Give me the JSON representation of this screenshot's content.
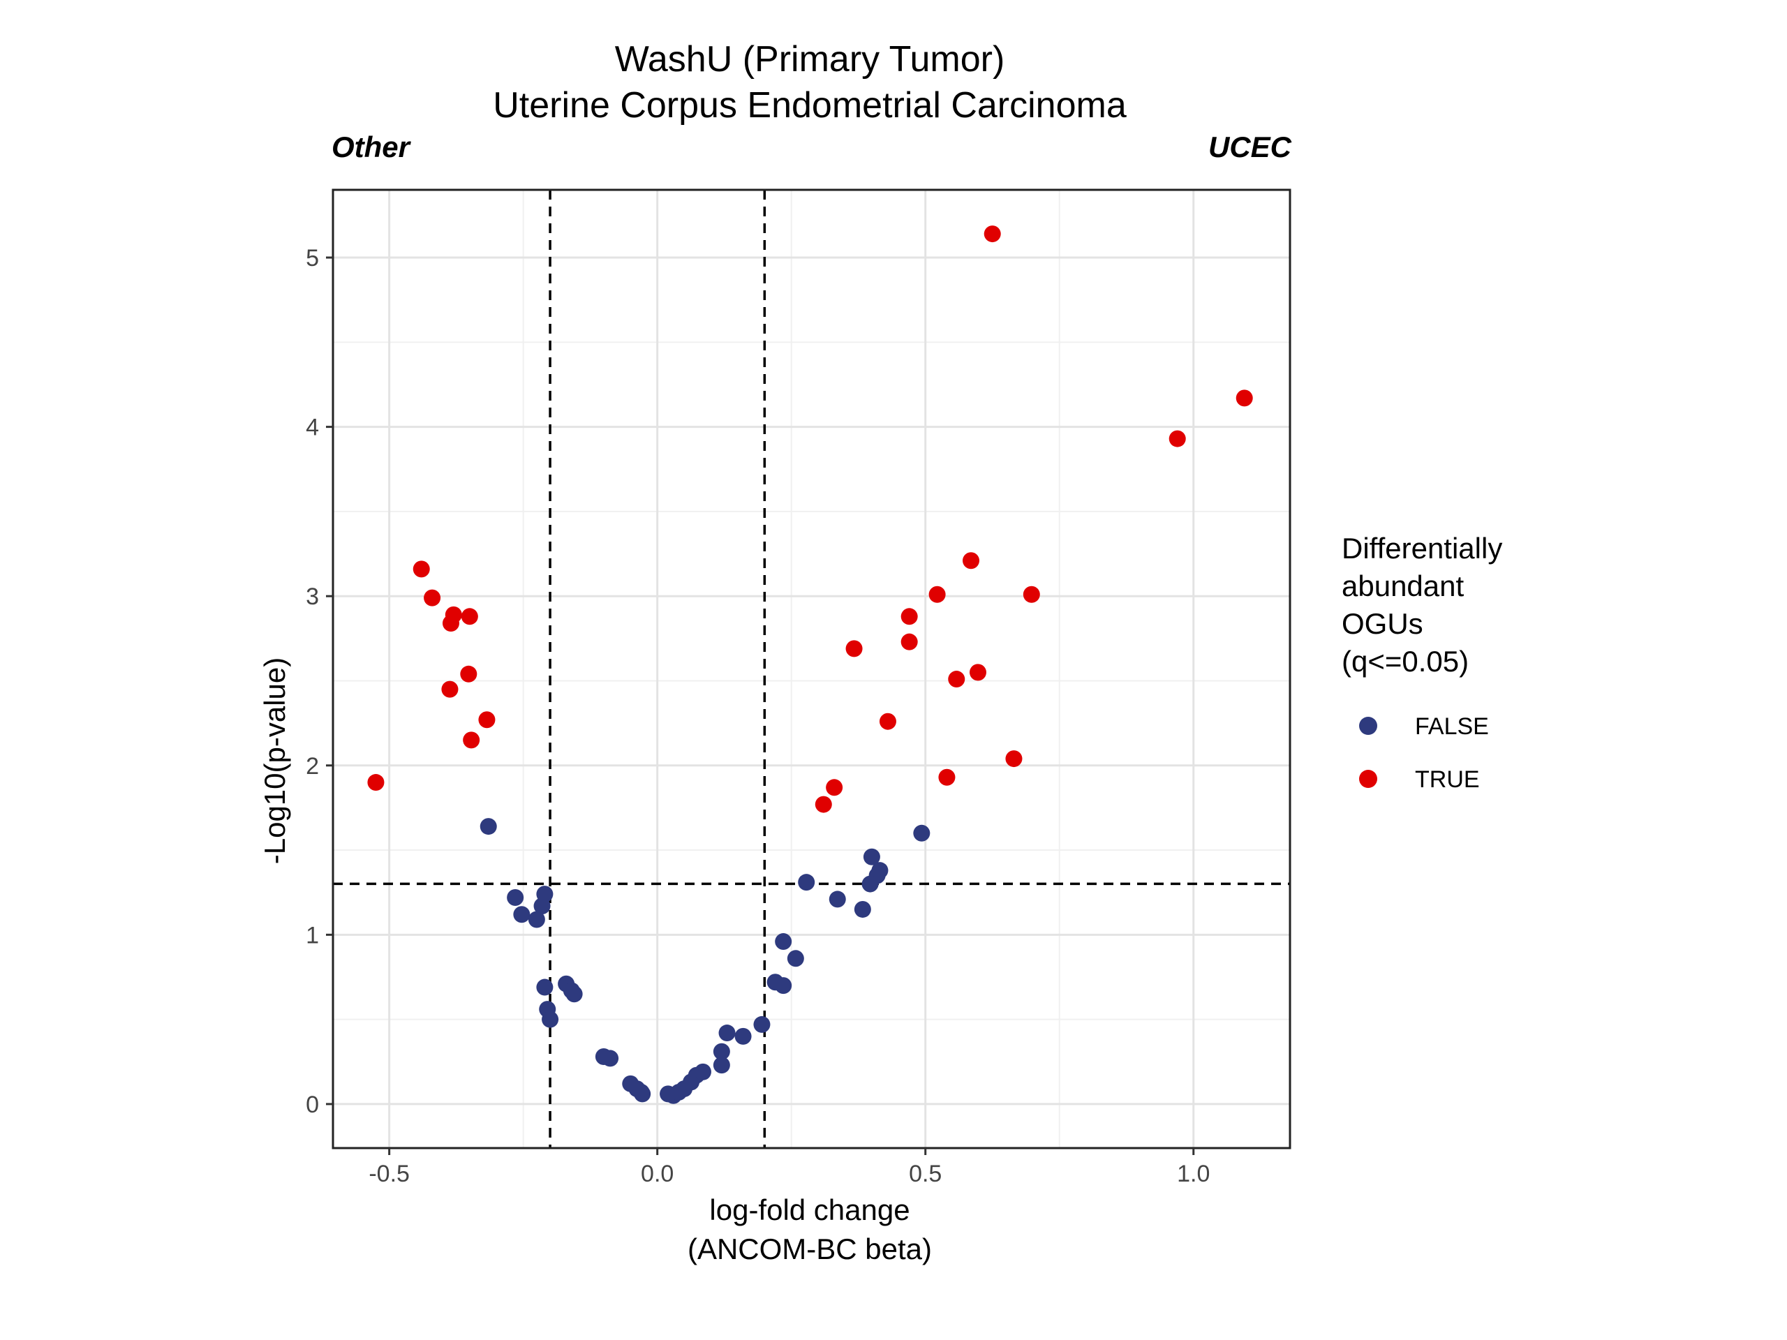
{
  "chart_data": {
    "type": "scatter",
    "title": "WashU (Primary Tumor)",
    "subtitle": "Uterine Corpus Endometrial Carcinoma",
    "left_label": "Other",
    "right_label": "UCEC",
    "xlabel_line1": "log-fold change",
    "xlabel_line2": "(ANCOM-BC beta)",
    "ylabel": "-Log10(p-value)",
    "xlim": [
      -0.605,
      1.18
    ],
    "ylim": [
      -0.26,
      5.4
    ],
    "x_ticks": [
      {
        "value": -0.5,
        "label": "-0.5"
      },
      {
        "value": 0.0,
        "label": "0.0"
      },
      {
        "value": 0.5,
        "label": "0.5"
      },
      {
        "value": 1.0,
        "label": "1.0"
      }
    ],
    "y_ticks": [
      {
        "value": 0,
        "label": "0"
      },
      {
        "value": 1,
        "label": "1"
      },
      {
        "value": 2,
        "label": "2"
      },
      {
        "value": 3,
        "label": "3"
      },
      {
        "value": 4,
        "label": "4"
      },
      {
        "value": 5,
        "label": "5"
      }
    ],
    "grid": true,
    "reference_lines": {
      "vertical": [
        -0.2,
        0.2
      ],
      "horizontal": [
        1.301
      ]
    },
    "legend": {
      "title_lines": [
        "Differentially",
        "abundant",
        "OGUs",
        "(q<=0.05)"
      ],
      "placement": "right",
      "entries": [
        {
          "label": "FALSE",
          "color": "#2e3a7e"
        },
        {
          "label": "TRUE",
          "color": "#e00000"
        }
      ]
    },
    "series": [
      {
        "name": "FALSE",
        "color": "#2e3a7e",
        "points": [
          [
            -0.315,
            1.64
          ],
          [
            -0.265,
            1.22
          ],
          [
            -0.253,
            1.12
          ],
          [
            -0.225,
            1.09
          ],
          [
            -0.215,
            1.17
          ],
          [
            -0.21,
            1.24
          ],
          [
            -0.21,
            0.69
          ],
          [
            -0.205,
            0.56
          ],
          [
            -0.2,
            0.5
          ],
          [
            -0.17,
            0.71
          ],
          [
            -0.16,
            0.67
          ],
          [
            -0.155,
            0.65
          ],
          [
            -0.1,
            0.28
          ],
          [
            -0.088,
            0.27
          ],
          [
            -0.05,
            0.12
          ],
          [
            -0.038,
            0.09
          ],
          [
            -0.03,
            0.07
          ],
          [
            -0.028,
            0.06
          ],
          [
            0.02,
            0.06
          ],
          [
            0.03,
            0.05
          ],
          [
            0.04,
            0.07
          ],
          [
            0.05,
            0.09
          ],
          [
            0.063,
            0.13
          ],
          [
            0.073,
            0.17
          ],
          [
            0.085,
            0.19
          ],
          [
            0.12,
            0.23
          ],
          [
            0.12,
            0.31
          ],
          [
            0.13,
            0.42
          ],
          [
            0.16,
            0.4
          ],
          [
            0.195,
            0.47
          ],
          [
            0.22,
            0.72
          ],
          [
            0.235,
            0.7
          ],
          [
            0.235,
            0.96
          ],
          [
            0.258,
            0.86
          ],
          [
            0.278,
            1.31
          ],
          [
            0.336,
            1.21
          ],
          [
            0.383,
            1.15
          ],
          [
            0.397,
            1.3
          ],
          [
            0.4,
            1.46
          ],
          [
            0.41,
            1.35
          ],
          [
            0.415,
            1.38
          ],
          [
            0.493,
            1.6
          ]
        ]
      },
      {
        "name": "TRUE",
        "color": "#e00000",
        "points": [
          [
            -0.525,
            1.9
          ],
          [
            -0.44,
            3.16
          ],
          [
            -0.42,
            2.99
          ],
          [
            -0.387,
            2.45
          ],
          [
            -0.385,
            2.84
          ],
          [
            -0.38,
            2.89
          ],
          [
            -0.352,
            2.54
          ],
          [
            -0.35,
            2.88
          ],
          [
            -0.347,
            2.15
          ],
          [
            -0.318,
            2.27
          ],
          [
            0.31,
            1.77
          ],
          [
            0.33,
            1.87
          ],
          [
            0.367,
            2.69
          ],
          [
            0.43,
            2.26
          ],
          [
            0.47,
            2.88
          ],
          [
            0.47,
            2.73
          ],
          [
            0.522,
            3.01
          ],
          [
            0.54,
            1.93
          ],
          [
            0.558,
            2.51
          ],
          [
            0.585,
            3.21
          ],
          [
            0.598,
            2.55
          ],
          [
            0.625,
            5.14
          ],
          [
            0.665,
            2.04
          ],
          [
            0.698,
            3.01
          ],
          [
            0.97,
            3.93
          ],
          [
            1.095,
            4.17
          ]
        ]
      }
    ]
  }
}
